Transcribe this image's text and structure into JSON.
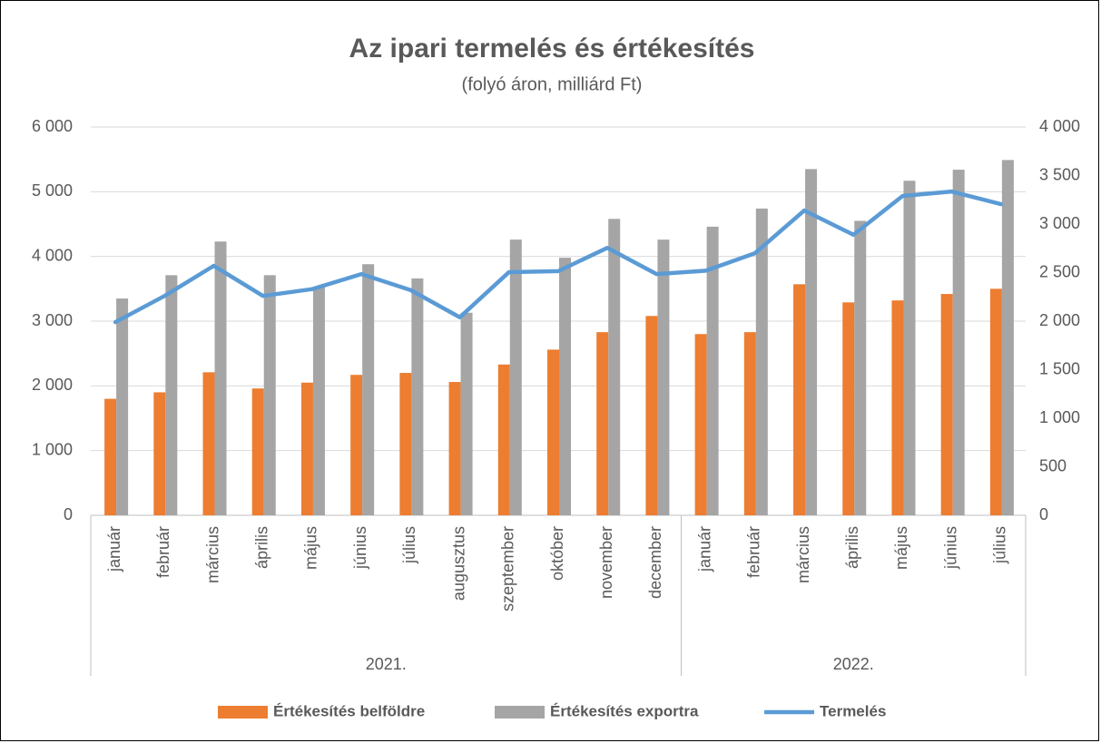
{
  "chart_data": {
    "type": "bar_line",
    "title": "Az ipari termelés és értékesítés",
    "subtitle": "(folyó áron, milliárd Ft)",
    "category_groups": [
      {
        "name": "2021.",
        "categories": [
          "január",
          "február",
          "március",
          "április",
          "május",
          "június",
          "július",
          "augusztus",
          "szeptember",
          "október",
          "november",
          "december"
        ]
      },
      {
        "name": "2022.",
        "categories": [
          "január",
          "február",
          "március",
          "április",
          "május",
          "június",
          "július"
        ]
      }
    ],
    "series": [
      {
        "name": "Értékesítés belföldre",
        "type": "bar",
        "color": "#ed7d31",
        "axis": "y",
        "values": [
          1800,
          1900,
          2210,
          1960,
          2050,
          2170,
          2200,
          2060,
          2330,
          2560,
          2830,
          3080,
          2800,
          2830,
          3570,
          3290,
          3320,
          3420,
          3500
        ]
      },
      {
        "name": "Értékesítés exportra",
        "type": "bar",
        "color": "#a5a5a5",
        "axis": "y",
        "values": [
          3350,
          3710,
          4230,
          3710,
          3530,
          3880,
          3660,
          3130,
          4260,
          3980,
          4580,
          4260,
          4460,
          4740,
          5350,
          4550,
          5170,
          5340,
          5490
        ]
      },
      {
        "name": "Termelés",
        "type": "line",
        "color": "#5b9bd5",
        "axis": "y2",
        "values": [
          1990,
          2260,
          2570,
          2260,
          2330,
          2485,
          2320,
          2040,
          2505,
          2515,
          2755,
          2485,
          2520,
          2700,
          3140,
          2890,
          3290,
          3335,
          3205
        ]
      }
    ],
    "ylim": [
      0,
      6000
    ],
    "yticks": [
      0,
      {
        "value": 1000,
        "label": "1 000"
      },
      {
        "value": 2000,
        "label": "2 000"
      },
      {
        "value": 3000,
        "label": "3 000"
      },
      {
        "value": 4000,
        "label": "4 000"
      },
      {
        "value": 5000,
        "label": "5 000"
      },
      {
        "value": 6000,
        "label": "6 000"
      }
    ],
    "y2lim": [
      0,
      4000
    ],
    "y2ticks": [
      0,
      500,
      {
        "value": 1000,
        "label": "1 000"
      },
      {
        "value": 1500,
        "label": "1 500"
      },
      {
        "value": 2000,
        "label": "2 000"
      },
      {
        "value": 2500,
        "label": "2 500"
      },
      {
        "value": 3000,
        "label": "3 000"
      },
      {
        "value": 3500,
        "label": "3 500"
      },
      {
        "value": 4000,
        "label": "4 000"
      }
    ],
    "grid": true,
    "legend": "bottom"
  }
}
